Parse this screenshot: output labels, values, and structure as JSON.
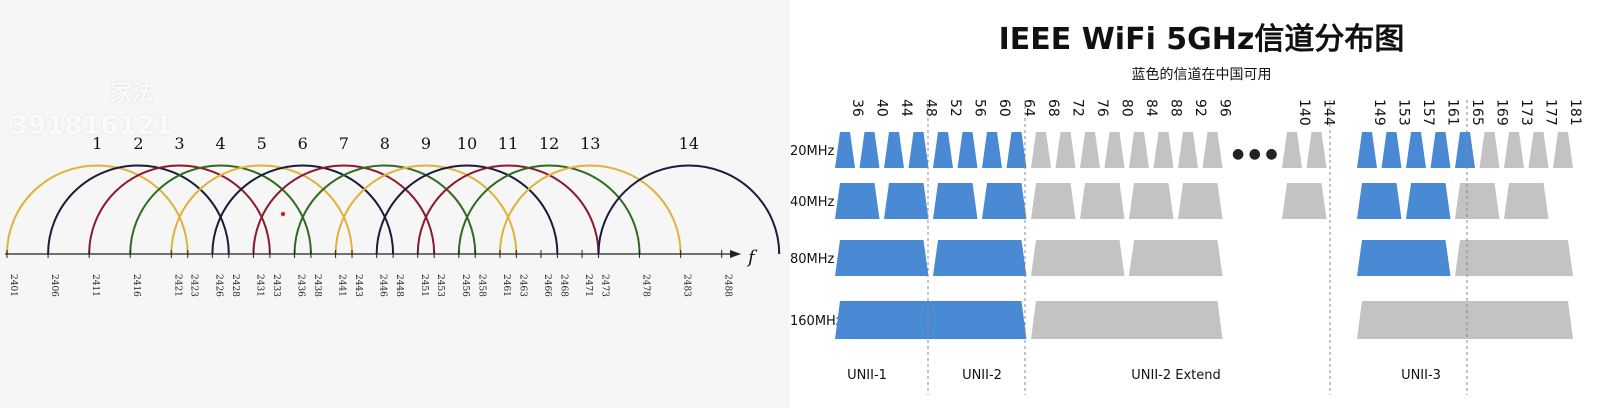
{
  "left": {
    "watermark": [
      "家法",
      "391816121"
    ],
    "axis_label": "f",
    "channels": [
      {
        "label": "1",
        "center": 2412
      },
      {
        "label": "2",
        "center": 2417
      },
      {
        "label": "3",
        "center": 2422
      },
      {
        "label": "4",
        "center": 2427
      },
      {
        "label": "5",
        "center": 2432
      },
      {
        "label": "6",
        "center": 2437
      },
      {
        "label": "7",
        "center": 2442
      },
      {
        "label": "8",
        "center": 2447
      },
      {
        "label": "9",
        "center": 2452
      },
      {
        "label": "10",
        "center": 2457
      },
      {
        "label": "11",
        "center": 2462
      },
      {
        "label": "12",
        "center": 2467
      },
      {
        "label": "13",
        "center": 2472
      },
      {
        "label": "14",
        "center": 2484
      }
    ],
    "ticks": [
      "2401",
      "2406",
      "2411",
      "2416",
      "2421",
      "2423",
      "2426",
      "2428",
      "2431",
      "2433",
      "2436",
      "2438",
      "2441",
      "2443",
      "2446",
      "2448",
      "2451",
      "2453",
      "2456",
      "2458",
      "2461",
      "2463",
      "2466",
      "2468",
      "2471",
      "2473",
      "2478",
      "2483",
      "2488"
    ],
    "arc_colors": [
      "#e0b23a",
      "#1b1b3a",
      "#8b1a2e",
      "#2e6b1e"
    ]
  },
  "right": {
    "title": "IEEE WiFi 5GHz信道分布图",
    "subtitle": "蓝色的信道在中国可用",
    "colors": {
      "available": "#4a8ad4",
      "unavailable": "#c3c3c3"
    },
    "channel_labels_a": [
      "36",
      "40",
      "44",
      "48",
      "52",
      "56",
      "60",
      "64",
      "68",
      "72",
      "76",
      "80",
      "84",
      "88",
      "92",
      "96"
    ],
    "channel_labels_b": [
      "140",
      "144"
    ],
    "channel_labels_c": [
      "149",
      "153",
      "157",
      "161",
      "165",
      "169",
      "173",
      "177",
      "181"
    ],
    "ellipsis": "● ● ●",
    "rows": [
      {
        "label": "20MHz"
      },
      {
        "label": "40MHz"
      },
      {
        "label": "80MHz"
      },
      {
        "label": "160MHz"
      }
    ],
    "bands": [
      "UNII-1",
      "UNII-2",
      "UNII-2 Extend",
      "UNII-3"
    ]
  }
}
